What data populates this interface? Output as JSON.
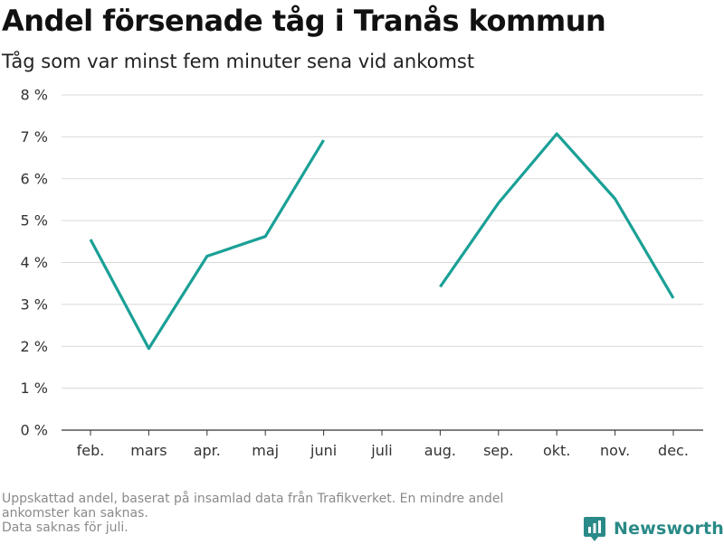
{
  "title": "Andel försenade tåg i Tranås kommun",
  "subtitle": "Tåg som var minst fem minuter sena vid ankomst",
  "footnote": [
    "Uppskattad andel, baserat på insamlad data från Trafikverket. En mindre andel",
    "ankomster kan saknas.",
    "Data saknas för juli."
  ],
  "brand": {
    "name": "Newsworthy",
    "icon": "newsworthy-logo-icon"
  },
  "colors": {
    "line": "#1aa096",
    "grid": "#d9d9d9",
    "axis": "#333333",
    "brand": "#2a8a87"
  },
  "chart_data": {
    "type": "line",
    "categories": [
      "feb.",
      "mars",
      "apr.",
      "maj",
      "juni",
      "juli",
      "aug.",
      "sep.",
      "okt.",
      "nov.",
      "dec."
    ],
    "series": [
      {
        "values": [
          4.55,
          1.95,
          4.15,
          4.62,
          6.92,
          null,
          3.42,
          5.42,
          7.07,
          5.52,
          3.15
        ]
      }
    ],
    "yticks": [
      0,
      1,
      2,
      3,
      4,
      5,
      6,
      7,
      8
    ],
    "ytick_labels": [
      "0 %",
      "1 %",
      "2 %",
      "3 %",
      "4 %",
      "5 %",
      "6 %",
      "7 %",
      "8 %"
    ],
    "ylim": [
      0,
      8
    ],
    "xlabel": "",
    "ylabel": "",
    "grid": true
  }
}
